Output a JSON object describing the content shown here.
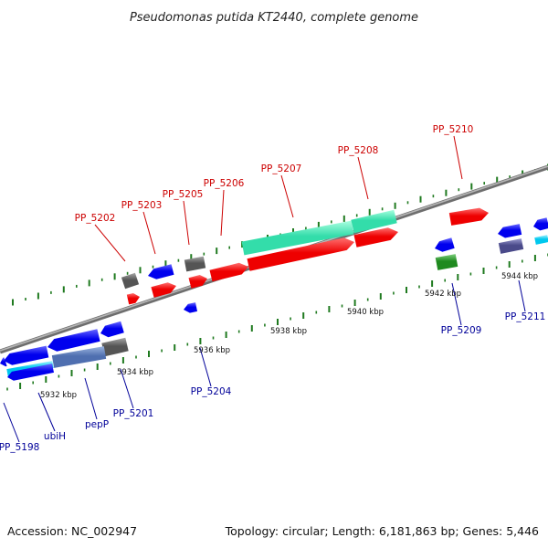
{
  "title": "Pseudomonas putida KT2440, complete genome",
  "footer": {
    "accession": "Accession: NC_002947",
    "summary": "Topology: circular; Length: 6,181,863 bp; Genes: 5,446"
  },
  "colors": {
    "forward_label": "#cc0000",
    "reverse_label": "#000099",
    "tick": "#1f7a1f",
    "backbone": "#8a8a8a",
    "cds_red": "#ee0000",
    "cds_blue": "#0000ee",
    "rna_mint": "#33eeaa",
    "pseudo_gray": "#666666"
  },
  "scale_labels": [
    "5932 kbp",
    "5934 kbp",
    "5936 kbp",
    "5938 kbp",
    "5940 kbp",
    "5942 kbp",
    "5944 kbp"
  ],
  "genes_forward": [
    "PP_5202",
    "PP_5203",
    "PP_5205",
    "PP_5206",
    "PP_5207",
    "PP_5208",
    "PP_5210"
  ],
  "genes_reverse": [
    "PP_5198",
    "ubiH",
    "pepP",
    "PP_5201",
    "PP_5204",
    "PP_5209",
    "PP_5211"
  ]
}
